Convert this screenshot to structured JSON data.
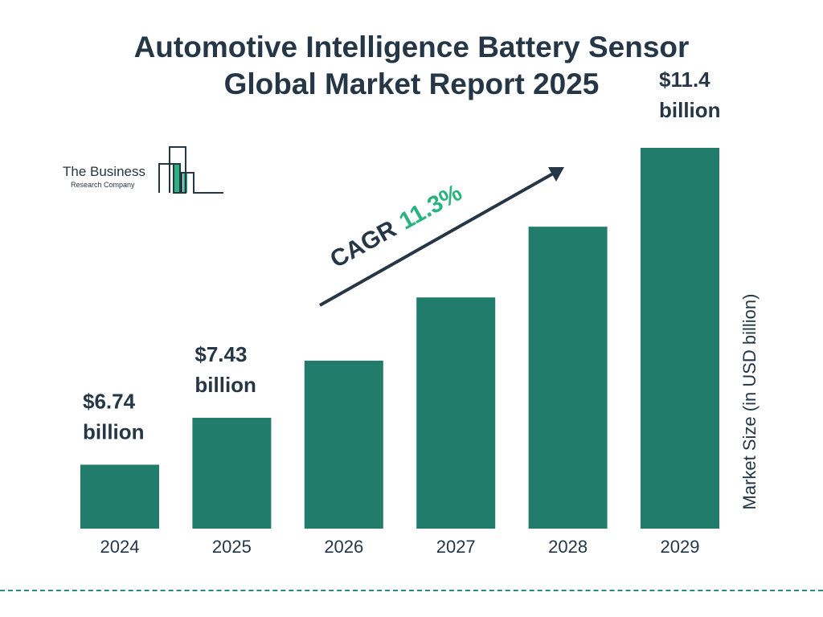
{
  "title_line1": "Automotive Intelligence Battery Sensor",
  "title_line2": "Global Market Report 2025",
  "logo": {
    "line1": "The Business",
    "line2": "Research Company"
  },
  "chart_data": {
    "type": "bar",
    "title": "Automotive Intelligence Battery Sensor Global Market Report 2025",
    "categories": [
      "2024",
      "2025",
      "2026",
      "2027",
      "2028",
      "2029"
    ],
    "values": [
      6.74,
      7.43,
      8.27,
      9.2,
      10.24,
      11.4
    ],
    "data_labels": [
      [
        "$6.74",
        "billion"
      ],
      [
        "$7.43",
        "billion"
      ],
      null,
      null,
      null,
      [
        "$11.4",
        "billion"
      ]
    ],
    "ylabel": "Market Size (in USD billion)",
    "xlabel": "",
    "ylim": [
      5.8,
      11.4
    ],
    "grid": false,
    "annotation": {
      "text": "CAGR",
      "value": "11.3%"
    },
    "colors": {
      "bar": "#217c6c",
      "text": "#253746",
      "cagr": "#2bb37f"
    }
  }
}
